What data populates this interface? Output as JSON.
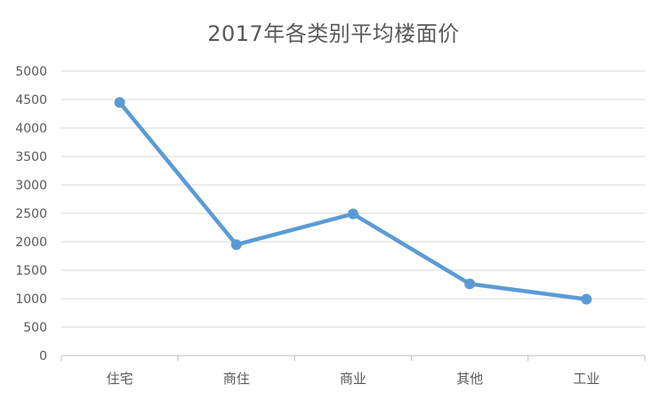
{
  "chart_data": {
    "type": "line",
    "title": "2017年各类别平均楼面价",
    "categories": [
      "住宅",
      "商住",
      "商业",
      "其他",
      "工业"
    ],
    "series": [
      {
        "values": [
          4450,
          1950,
          2490,
          1260,
          990
        ]
      }
    ],
    "ylim": [
      0,
      5000
    ],
    "yticks": [
      0,
      500,
      1000,
      1500,
      2000,
      2500,
      3000,
      3500,
      4000,
      4500,
      5000
    ],
    "grid": true,
    "legend": "none",
    "colors": {
      "line": "#5B9BD5",
      "grid": "#D9D9D9",
      "axis": "#BFBFBF",
      "text": "#595959"
    }
  }
}
